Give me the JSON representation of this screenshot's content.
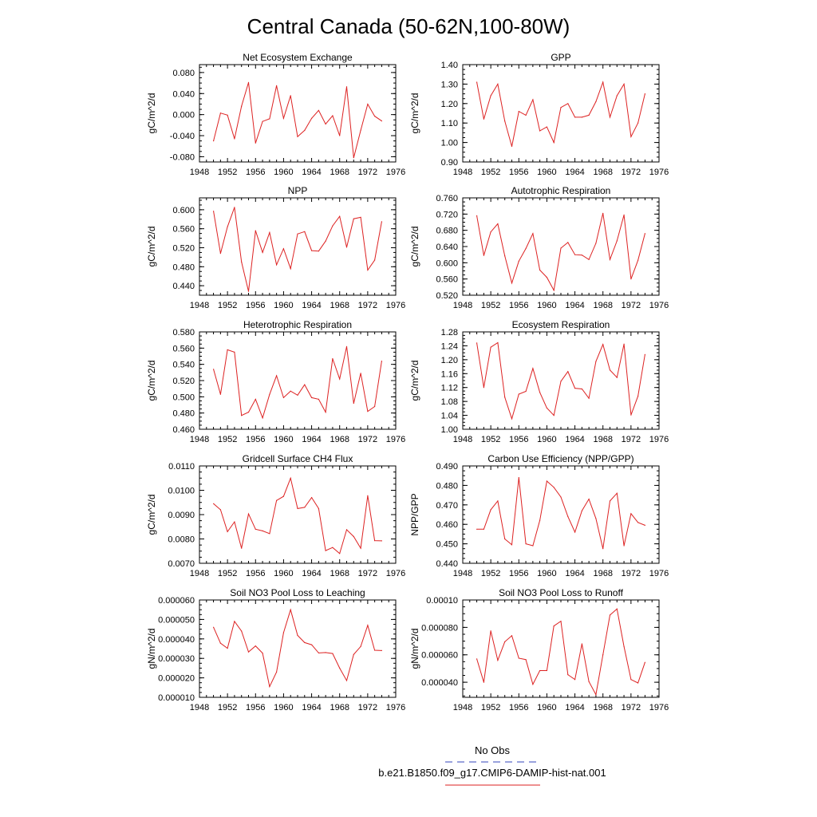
{
  "figure": {
    "title": "Central Canada (50-62N,100-80W)"
  },
  "legend": {
    "entries": [
      {
        "label": "No Obs",
        "color": "#3344bb",
        "dash": true
      },
      {
        "label": "b.e21.B1850.f09_g17.CMIP6-DAMIP-hist-nat.001",
        "color": "#dd2222",
        "dash": false
      }
    ]
  },
  "chart_data": [
    {
      "type": "line",
      "title": "Net Ecosystem Exchange",
      "ylabel": "gC/m^2/d",
      "xlim": [
        1948,
        1976
      ],
      "xticks": [
        1948,
        1952,
        1956,
        1960,
        1964,
        1968,
        1972,
        1976
      ],
      "ylim": [
        -0.09,
        0.095
      ],
      "yticks": [
        -0.08,
        -0.04,
        0.0,
        0.04,
        0.08
      ],
      "yticklabels": [
        "-0.080",
        "-0.040",
        "0.000",
        "0.040",
        "0.080"
      ],
      "series": [
        {
          "color": "#dd2222",
          "x": [
            1950,
            1951,
            1952,
            1953,
            1954,
            1955,
            1956,
            1957,
            1958,
            1959,
            1960,
            1961,
            1962,
            1963,
            1964,
            1965,
            1966,
            1967,
            1968,
            1969,
            1970,
            1971,
            1972,
            1973,
            1974
          ],
          "y": [
            -0.05,
            0.003,
            -0.001,
            -0.046,
            0.016,
            0.061,
            -0.054,
            -0.013,
            -0.008,
            0.055,
            -0.007,
            0.036,
            -0.042,
            -0.03,
            -0.007,
            0.008,
            -0.018,
            -0.002,
            -0.04,
            0.053,
            -0.082,
            -0.03,
            0.02,
            -0.003,
            -0.012
          ]
        }
      ]
    },
    {
      "type": "line",
      "title": "GPP",
      "ylabel": "gC/m^2/d",
      "xlim": [
        1948,
        1976
      ],
      "xticks": [
        1948,
        1952,
        1956,
        1960,
        1964,
        1968,
        1972,
        1976
      ],
      "ylim": [
        0.9,
        1.4
      ],
      "yticks": [
        0.9,
        1.0,
        1.1,
        1.2,
        1.3,
        1.4
      ],
      "yticklabels": [
        "0.90",
        "1.00",
        "1.10",
        "1.20",
        "1.30",
        "1.40"
      ],
      "series": [
        {
          "color": "#dd2222",
          "x": [
            1950,
            1951,
            1952,
            1953,
            1954,
            1955,
            1956,
            1957,
            1958,
            1959,
            1960,
            1961,
            1962,
            1963,
            1964,
            1965,
            1966,
            1967,
            1968,
            1969,
            1970,
            1971,
            1972,
            1973,
            1974
          ],
          "y": [
            1.31,
            1.12,
            1.24,
            1.3,
            1.11,
            0.98,
            1.16,
            1.14,
            1.22,
            1.06,
            1.08,
            1.0,
            1.18,
            1.2,
            1.13,
            1.13,
            1.14,
            1.21,
            1.31,
            1.13,
            1.24,
            1.3,
            1.03,
            1.1,
            1.25
          ]
        }
      ]
    },
    {
      "type": "line",
      "title": "NPP",
      "ylabel": "gC/m^2/d",
      "xlim": [
        1948,
        1976
      ],
      "xticks": [
        1948,
        1952,
        1956,
        1960,
        1964,
        1968,
        1972,
        1976
      ],
      "ylim": [
        0.42,
        0.625
      ],
      "yticks": [
        0.44,
        0.48,
        0.52,
        0.56,
        0.6
      ],
      "yticklabels": [
        "0.440",
        "0.480",
        "0.520",
        "0.560",
        "0.600"
      ],
      "series": [
        {
          "color": "#dd2222",
          "x": [
            1950,
            1951,
            1952,
            1953,
            1954,
            1955,
            1956,
            1957,
            1958,
            1959,
            1960,
            1961,
            1962,
            1963,
            1964,
            1965,
            1966,
            1967,
            1968,
            1969,
            1970,
            1971,
            1972,
            1973,
            1974
          ],
          "y": [
            0.597,
            0.508,
            0.564,
            0.605,
            0.49,
            0.428,
            0.556,
            0.51,
            0.552,
            0.484,
            0.518,
            0.476,
            0.549,
            0.554,
            0.514,
            0.513,
            0.534,
            0.566,
            0.586,
            0.521,
            0.581,
            0.584,
            0.473,
            0.494,
            0.575
          ]
        }
      ]
    },
    {
      "type": "line",
      "title": "Autotrophic Respiration",
      "ylabel": "gC/m^2/d",
      "xlim": [
        1948,
        1976
      ],
      "xticks": [
        1948,
        1952,
        1956,
        1960,
        1964,
        1968,
        1972,
        1976
      ],
      "ylim": [
        0.52,
        0.76
      ],
      "yticks": [
        0.52,
        0.56,
        0.6,
        0.64,
        0.68,
        0.72,
        0.76
      ],
      "yticklabels": [
        "0.520",
        "0.560",
        "0.600",
        "0.640",
        "0.680",
        "0.720",
        "0.760"
      ],
      "series": [
        {
          "color": "#dd2222",
          "x": [
            1950,
            1951,
            1952,
            1953,
            1954,
            1955,
            1956,
            1957,
            1958,
            1959,
            1960,
            1961,
            1962,
            1963,
            1964,
            1965,
            1966,
            1967,
            1968,
            1969,
            1970,
            1971,
            1972,
            1973,
            1974
          ],
          "y": [
            0.716,
            0.618,
            0.676,
            0.696,
            0.617,
            0.55,
            0.604,
            0.635,
            0.672,
            0.582,
            0.564,
            0.532,
            0.636,
            0.65,
            0.62,
            0.619,
            0.608,
            0.648,
            0.722,
            0.608,
            0.654,
            0.718,
            0.56,
            0.606,
            0.672
          ]
        }
      ]
    },
    {
      "type": "line",
      "title": "Heterotrophic Respiration",
      "ylabel": "gC/m^2/d",
      "xlim": [
        1948,
        1976
      ],
      "xticks": [
        1948,
        1952,
        1956,
        1960,
        1964,
        1968,
        1972,
        1976
      ],
      "ylim": [
        0.46,
        0.58
      ],
      "yticks": [
        0.46,
        0.48,
        0.5,
        0.52,
        0.54,
        0.56,
        0.58
      ],
      "yticklabels": [
        "0.460",
        "0.480",
        "0.500",
        "0.520",
        "0.540",
        "0.560",
        "0.580"
      ],
      "series": [
        {
          "color": "#dd2222",
          "x": [
            1950,
            1951,
            1952,
            1953,
            1954,
            1955,
            1956,
            1957,
            1958,
            1959,
            1960,
            1961,
            1962,
            1963,
            1964,
            1965,
            1966,
            1967,
            1968,
            1969,
            1970,
            1971,
            1972,
            1973,
            1974
          ],
          "y": [
            0.534,
            0.503,
            0.558,
            0.555,
            0.477,
            0.481,
            0.497,
            0.474,
            0.503,
            0.526,
            0.499,
            0.507,
            0.502,
            0.515,
            0.499,
            0.497,
            0.481,
            0.547,
            0.522,
            0.562,
            0.492,
            0.529,
            0.482,
            0.488,
            0.544
          ]
        }
      ]
    },
    {
      "type": "line",
      "title": "Ecosystem Respiration",
      "ylabel": "gC/m^2/d",
      "xlim": [
        1948,
        1976
      ],
      "xticks": [
        1948,
        1952,
        1956,
        1960,
        1964,
        1968,
        1972,
        1976
      ],
      "ylim": [
        1.0,
        1.28
      ],
      "yticks": [
        1.0,
        1.04,
        1.08,
        1.12,
        1.16,
        1.2,
        1.24,
        1.28
      ],
      "yticklabels": [
        "1.00",
        "1.04",
        "1.08",
        "1.12",
        "1.16",
        "1.20",
        "1.24",
        "1.28"
      ],
      "series": [
        {
          "color": "#dd2222",
          "x": [
            1950,
            1951,
            1952,
            1953,
            1954,
            1955,
            1956,
            1957,
            1958,
            1959,
            1960,
            1961,
            1962,
            1963,
            1964,
            1965,
            1966,
            1967,
            1968,
            1969,
            1970,
            1971,
            1972,
            1973,
            1974
          ],
          "y": [
            1.248,
            1.12,
            1.236,
            1.249,
            1.092,
            1.03,
            1.101,
            1.109,
            1.175,
            1.106,
            1.061,
            1.04,
            1.138,
            1.166,
            1.118,
            1.116,
            1.089,
            1.195,
            1.244,
            1.17,
            1.149,
            1.245,
            1.041,
            1.095,
            1.215
          ]
        }
      ]
    },
    {
      "type": "line",
      "title": "Gridcell Surface CH4 Flux",
      "ylabel": "gC/m^2/d",
      "xlim": [
        1948,
        1976
      ],
      "xticks": [
        1948,
        1952,
        1956,
        1960,
        1964,
        1968,
        1972,
        1976
      ],
      "ylim": [
        0.007,
        0.011
      ],
      "yticks": [
        0.007,
        0.008,
        0.009,
        0.01,
        0.011
      ],
      "yticklabels": [
        "0.0070",
        "0.0080",
        "0.0090",
        "0.0100",
        "0.0110"
      ],
      "series": [
        {
          "color": "#dd2222",
          "x": [
            1950,
            1951,
            1952,
            1953,
            1954,
            1955,
            1956,
            1957,
            1958,
            1959,
            1960,
            1961,
            1962,
            1963,
            1964,
            1965,
            1966,
            1967,
            1968,
            1969,
            1970,
            1971,
            1972,
            1973,
            1974
          ],
          "y": [
            0.00945,
            0.0092,
            0.0083,
            0.0087,
            0.00762,
            0.00903,
            0.0084,
            0.00833,
            0.00822,
            0.00958,
            0.00975,
            0.0105,
            0.00925,
            0.0093,
            0.0097,
            0.00925,
            0.00752,
            0.00765,
            0.0074,
            0.00838,
            0.0081,
            0.00762,
            0.00978,
            0.00793,
            0.00792
          ]
        }
      ]
    },
    {
      "type": "line",
      "title": "Carbon Use Efficiency (NPP/GPP)",
      "ylabel": "NPP/GPP",
      "xlim": [
        1948,
        1976
      ],
      "xticks": [
        1948,
        1952,
        1956,
        1960,
        1964,
        1968,
        1972,
        1976
      ],
      "ylim": [
        0.44,
        0.49
      ],
      "yticks": [
        0.44,
        0.45,
        0.46,
        0.47,
        0.48,
        0.49
      ],
      "yticklabels": [
        "0.440",
        "0.450",
        "0.460",
        "0.470",
        "0.480",
        "0.490"
      ],
      "series": [
        {
          "color": "#dd2222",
          "x": [
            1950,
            1951,
            1952,
            1953,
            1954,
            1955,
            1956,
            1957,
            1958,
            1959,
            1960,
            1961,
            1962,
            1963,
            1964,
            1965,
            1966,
            1967,
            1968,
            1969,
            1970,
            1971,
            1972,
            1973,
            1974
          ],
          "y": [
            0.4575,
            0.4575,
            0.4675,
            0.472,
            0.4525,
            0.4495,
            0.484,
            0.45,
            0.449,
            0.462,
            0.4822,
            0.479,
            0.474,
            0.464,
            0.456,
            0.467,
            0.473,
            0.463,
            0.4475,
            0.472,
            0.476,
            0.449,
            0.4655,
            0.461,
            0.4595
          ]
        }
      ]
    },
    {
      "type": "line",
      "title": "Soil NO3 Pool Loss to Leaching",
      "ylabel": "gN/m^2/d",
      "xlim": [
        1948,
        1976
      ],
      "xticks": [
        1948,
        1952,
        1956,
        1960,
        1964,
        1968,
        1972,
        1976
      ],
      "ylim": [
        1e-05,
        6e-05
      ],
      "yticks": [
        1e-05,
        2e-05,
        3e-05,
        4e-05,
        5e-05,
        6e-05
      ],
      "yticklabels": [
        "0.000010",
        "0.000020",
        "0.000030",
        "0.000040",
        "0.000050",
        "0.000060"
      ],
      "series": [
        {
          "color": "#dd2222",
          "x": [
            1950,
            1951,
            1952,
            1953,
            1954,
            1955,
            1956,
            1957,
            1958,
            1959,
            1960,
            1961,
            1962,
            1963,
            1964,
            1965,
            1966,
            1967,
            1968,
            1969,
            1970,
            1971,
            1972,
            1973,
            1974
          ],
          "y": [
            4.6e-05,
            3.78e-05,
            3.52e-05,
            4.9e-05,
            4.4e-05,
            3.33e-05,
            3.64e-05,
            3.27e-05,
            1.55e-05,
            2.3e-05,
            4.32e-05,
            5.5e-05,
            4.18e-05,
            3.81e-05,
            3.7e-05,
            3.28e-05,
            3.3e-05,
            3.25e-05,
            2.5e-05,
            1.86e-05,
            3.2e-05,
            3.61e-05,
            4.7e-05,
            3.42e-05,
            3.4e-05
          ]
        }
      ]
    },
    {
      "type": "line",
      "title": "Soil NO3 Pool Loss to Runoff",
      "ylabel": "gN/m^2/d",
      "xlim": [
        1948,
        1976
      ],
      "xticks": [
        1948,
        1952,
        1956,
        1960,
        1964,
        1968,
        1972,
        1976
      ],
      "ylim": [
        2.9e-05,
        0.0001
      ],
      "yticks": [
        4e-05,
        6e-05,
        8e-05,
        0.0001
      ],
      "yticklabels": [
        "0.000040",
        "0.000060",
        "0.000080",
        "0.00010"
      ],
      "series": [
        {
          "color": "#dd2222",
          "x": [
            1950,
            1951,
            1952,
            1953,
            1954,
            1955,
            1956,
            1957,
            1958,
            1959,
            1960,
            1961,
            1962,
            1963,
            1964,
            1965,
            1966,
            1967,
            1968,
            1969,
            1970,
            1971,
            1972,
            1973,
            1974
          ],
          "y": [
            5.7e-05,
            4e-05,
            7.75e-05,
            5.6e-05,
            6.95e-05,
            7.4e-05,
            5.75e-05,
            5.65e-05,
            3.85e-05,
            4.85e-05,
            4.85e-05,
            8.1e-05,
            8.45e-05,
            4.55e-05,
            4.2e-05,
            6.8e-05,
            4.05e-05,
            3.1e-05,
            6e-05,
            8.9e-05,
            9.35e-05,
            6.6e-05,
            4.2e-05,
            3.95e-05,
            5.45e-05
          ]
        }
      ]
    }
  ]
}
